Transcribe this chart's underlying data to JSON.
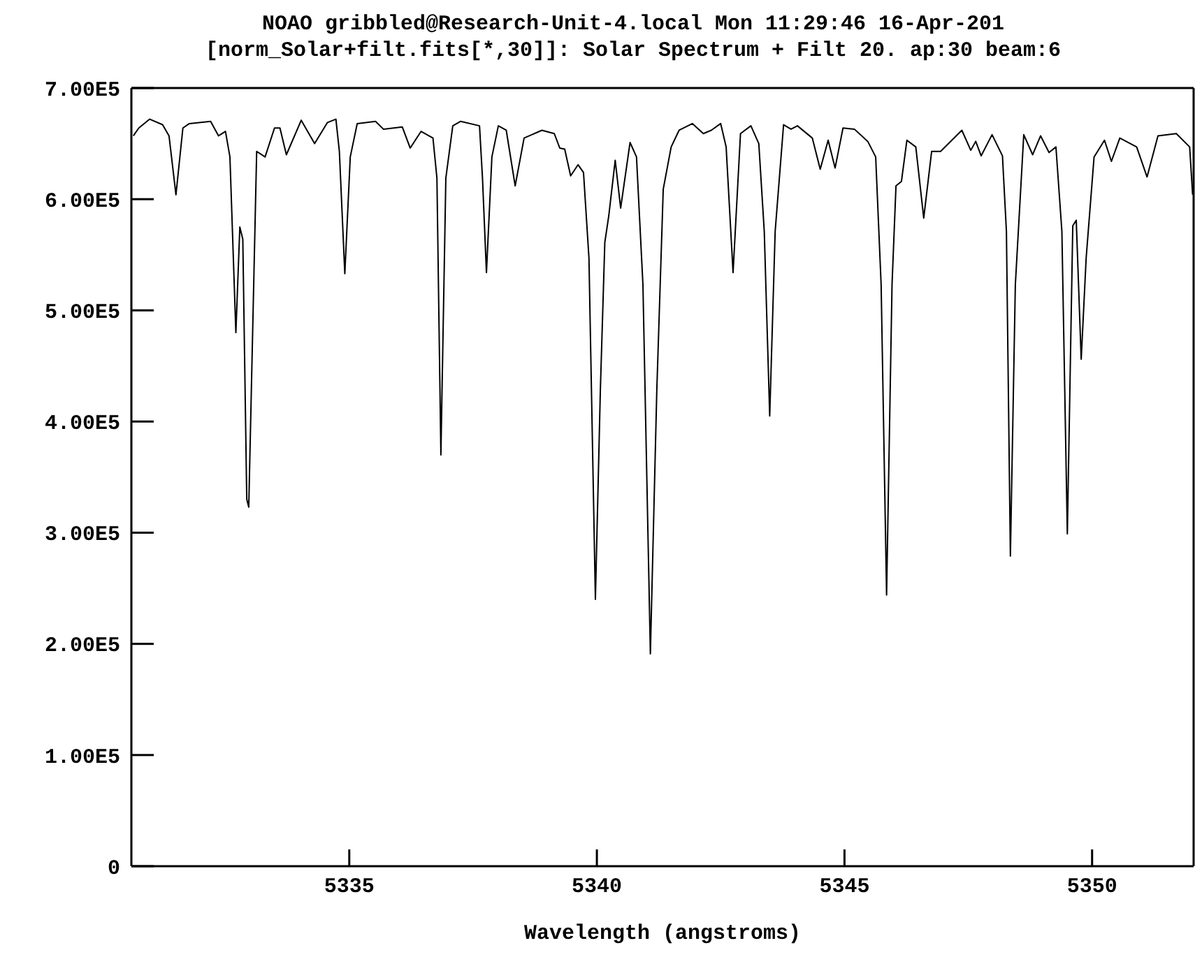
{
  "chart_data": {
    "type": "line",
    "title": "NOAO gribbled@Research-Unit-4.local Mon 11:29:46 16-Apr-201",
    "subtitle": "[norm_Solar+filt.fits[*,30]]: Solar Spectrum + Filt 20. ap:30 beam:6",
    "xlabel": "Wavelength (angstroms)",
    "x": [
      5330.64,
      5330.75,
      5330.97,
      5331.23,
      5331.36,
      5331.5,
      5331.64,
      5331.77,
      5332.2,
      5332.36,
      5332.5,
      5332.59,
      5332.71,
      5332.79,
      5332.85,
      5332.93,
      5332.97,
      5333.13,
      5333.3,
      5333.49,
      5333.6,
      5333.73,
      5334.03,
      5334.3,
      5334.56,
      5334.73,
      5334.8,
      5334.91,
      5335.02,
      5335.16,
      5335.53,
      5335.69,
      5336.07,
      5336.23,
      5336.45,
      5336.69,
      5336.77,
      5336.85,
      5336.95,
      5337.09,
      5337.25,
      5337.63,
      5337.69,
      5337.77,
      5337.88,
      5338.01,
      5338.17,
      5338.35,
      5338.53,
      5338.89,
      5339.14,
      5339.25,
      5339.35,
      5339.47,
      5339.62,
      5339.73,
      5339.84,
      5339.97,
      5340.07,
      5340.16,
      5340.24,
      5340.37,
      5340.48,
      5340.67,
      5340.8,
      5340.93,
      5341.08,
      5341.21,
      5341.34,
      5341.5,
      5341.66,
      5341.93,
      5342.15,
      5342.31,
      5342.5,
      5342.61,
      5342.75,
      5342.9,
      5343.11,
      5343.27,
      5343.38,
      5343.49,
      5343.6,
      5343.77,
      5343.92,
      5344.05,
      5344.35,
      5344.51,
      5344.67,
      5344.81,
      5344.97,
      5345.2,
      5345.47,
      5345.63,
      5345.74,
      5345.85,
      5345.96,
      5346.04,
      5346.15,
      5346.26,
      5346.44,
      5346.6,
      5346.76,
      5346.94,
      5347.37,
      5347.55,
      5347.65,
      5347.76,
      5347.98,
      5348.19,
      5348.27,
      5348.35,
      5348.45,
      5348.62,
      5348.8,
      5348.96,
      5349.13,
      5349.27,
      5349.39,
      5349.5,
      5349.61,
      5349.68,
      5349.78,
      5349.88,
      5350.04,
      5350.25,
      5350.39,
      5350.56,
      5350.9,
      5351.11,
      5351.33,
      5351.7,
      5351.97,
      5352.03
    ],
    "series": [
      {
        "color": "#000000",
        "values": [
          657000,
          664000,
          672000,
          667000,
          657000,
          604000,
          664000,
          668000,
          670000,
          657000,
          661000,
          638000,
          480000,
          575000,
          564000,
          330000,
          323000,
          643000,
          638000,
          664000,
          664000,
          640000,
          671000,
          650000,
          669000,
          672000,
          643000,
          533000,
          638000,
          668000,
          670000,
          663000,
          665000,
          646000,
          661000,
          655000,
          619000,
          370000,
          619000,
          666000,
          670000,
          666000,
          619000,
          534000,
          638000,
          666000,
          662000,
          612000,
          655000,
          662000,
          659000,
          646000,
          645000,
          621000,
          631000,
          624000,
          547000,
          240000,
          428000,
          561000,
          585000,
          635000,
          592000,
          651000,
          638000,
          523000,
          191000,
          428000,
          609000,
          647000,
          662000,
          668000,
          659000,
          662000,
          668000,
          647000,
          534000,
          659000,
          666000,
          650000,
          571000,
          405000,
          571000,
          667000,
          663000,
          666000,
          655000,
          627000,
          653000,
          628000,
          664000,
          663000,
          652000,
          638000,
          523000,
          244000,
          523000,
          612000,
          616000,
          653000,
          647000,
          583000,
          643000,
          643000,
          662000,
          644000,
          652000,
          639000,
          658000,
          639000,
          571000,
          279000,
          523000,
          658000,
          640000,
          657000,
          642000,
          647000,
          571000,
          299000,
          576000,
          581000,
          456000,
          547000,
          638000,
          653000,
          634000,
          655000,
          647000,
          620000,
          657000,
          659000,
          647000,
          604000
        ]
      }
    ],
    "xlim": [
      5330.6,
      5352.05
    ],
    "xticks": [
      5335,
      5340,
      5345,
      5350
    ],
    "ylim": [
      0,
      700000
    ],
    "yticks": [
      {
        "value": 0,
        "label": "0"
      },
      {
        "value": 100000,
        "label": "1.00E5"
      },
      {
        "value": 200000,
        "label": "2.00E5"
      },
      {
        "value": 300000,
        "label": "3.00E5"
      },
      {
        "value": 400000,
        "label": "4.00E5"
      },
      {
        "value": 500000,
        "label": "5.00E5"
      },
      {
        "value": 600000,
        "label": "6.00E5"
      },
      {
        "value": 700000,
        "label": "7.00E5"
      }
    ],
    "grid": false,
    "legend": false,
    "marker": "none",
    "line_style": "solid"
  }
}
